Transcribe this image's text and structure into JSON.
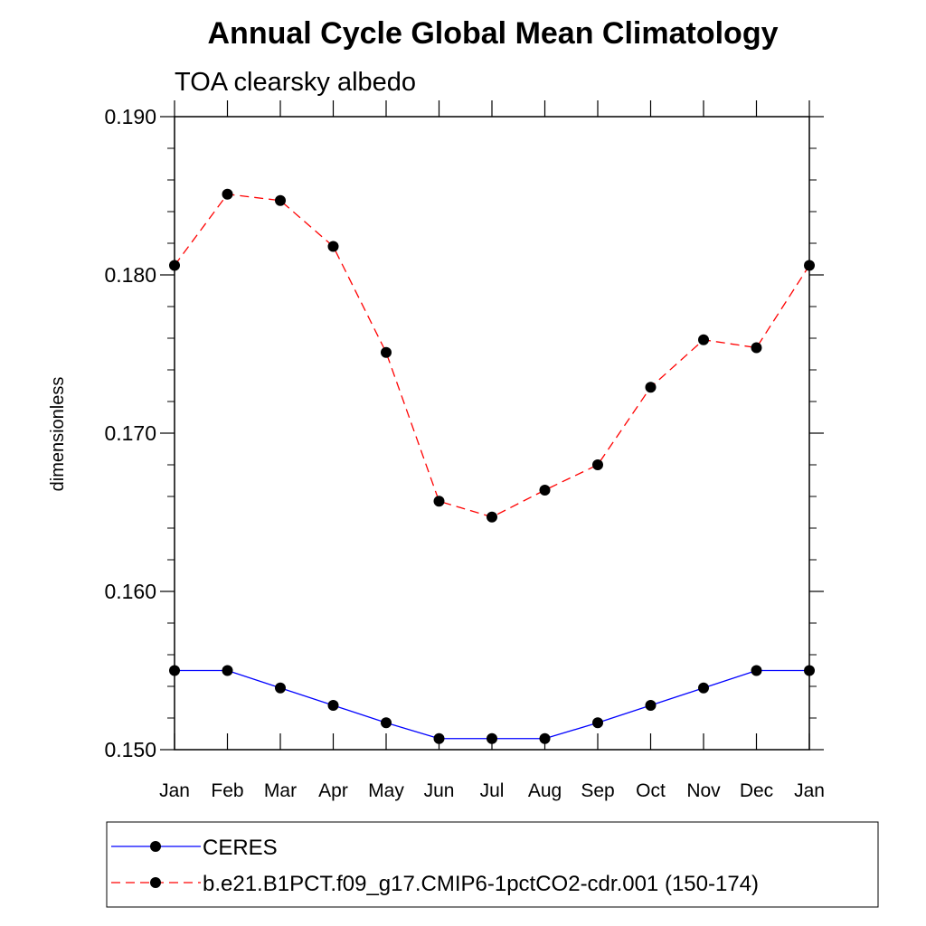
{
  "chart_data": {
    "type": "line",
    "title": "Annual Cycle Global Mean Climatology",
    "subtitle": "TOA clearsky albedo",
    "xlabel": "",
    "ylabel": "dimensionless",
    "categories": [
      "Jan",
      "Feb",
      "Mar",
      "Apr",
      "May",
      "Jun",
      "Jul",
      "Aug",
      "Sep",
      "Oct",
      "Nov",
      "Dec",
      "Jan"
    ],
    "ylim": [
      0.15,
      0.19
    ],
    "yticks": [
      "0.150",
      "0.160",
      "0.170",
      "0.180",
      "0.190"
    ],
    "legend_position": "bottom",
    "series": [
      {
        "name": "CERES",
        "color": "#0000ff",
        "line_style": "solid",
        "marker": "filled-circle",
        "values": [
          0.155,
          0.155,
          0.1539,
          0.1528,
          0.1517,
          0.1507,
          0.1507,
          0.1507,
          0.1517,
          0.1528,
          0.1539,
          0.155,
          0.155
        ]
      },
      {
        "name": "b.e21.B1PCT.f09_g17.CMIP6-1pctCO2-cdr.001 (150-174)",
        "color": "#ff0000",
        "line_style": "dashed",
        "marker": "filled-circle",
        "values": [
          0.1806,
          0.1851,
          0.1847,
          0.1818,
          0.1751,
          0.1657,
          0.1647,
          0.1664,
          0.168,
          0.1729,
          0.1759,
          0.1754,
          0.1806
        ]
      }
    ]
  }
}
